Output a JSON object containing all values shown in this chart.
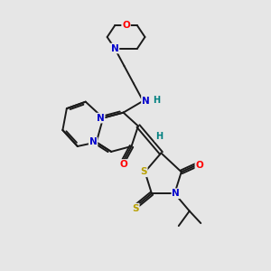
{
  "bg_color": "#e6e6e6",
  "bond_color": "#1a1a1a",
  "N_color": "#0000cc",
  "O_color": "#ff0000",
  "S_color": "#b8a000",
  "H_color": "#008080",
  "figsize": [
    3.0,
    3.0
  ],
  "dpi": 100,
  "xlim": [
    0,
    10
  ],
  "ylim": [
    0,
    10
  ]
}
